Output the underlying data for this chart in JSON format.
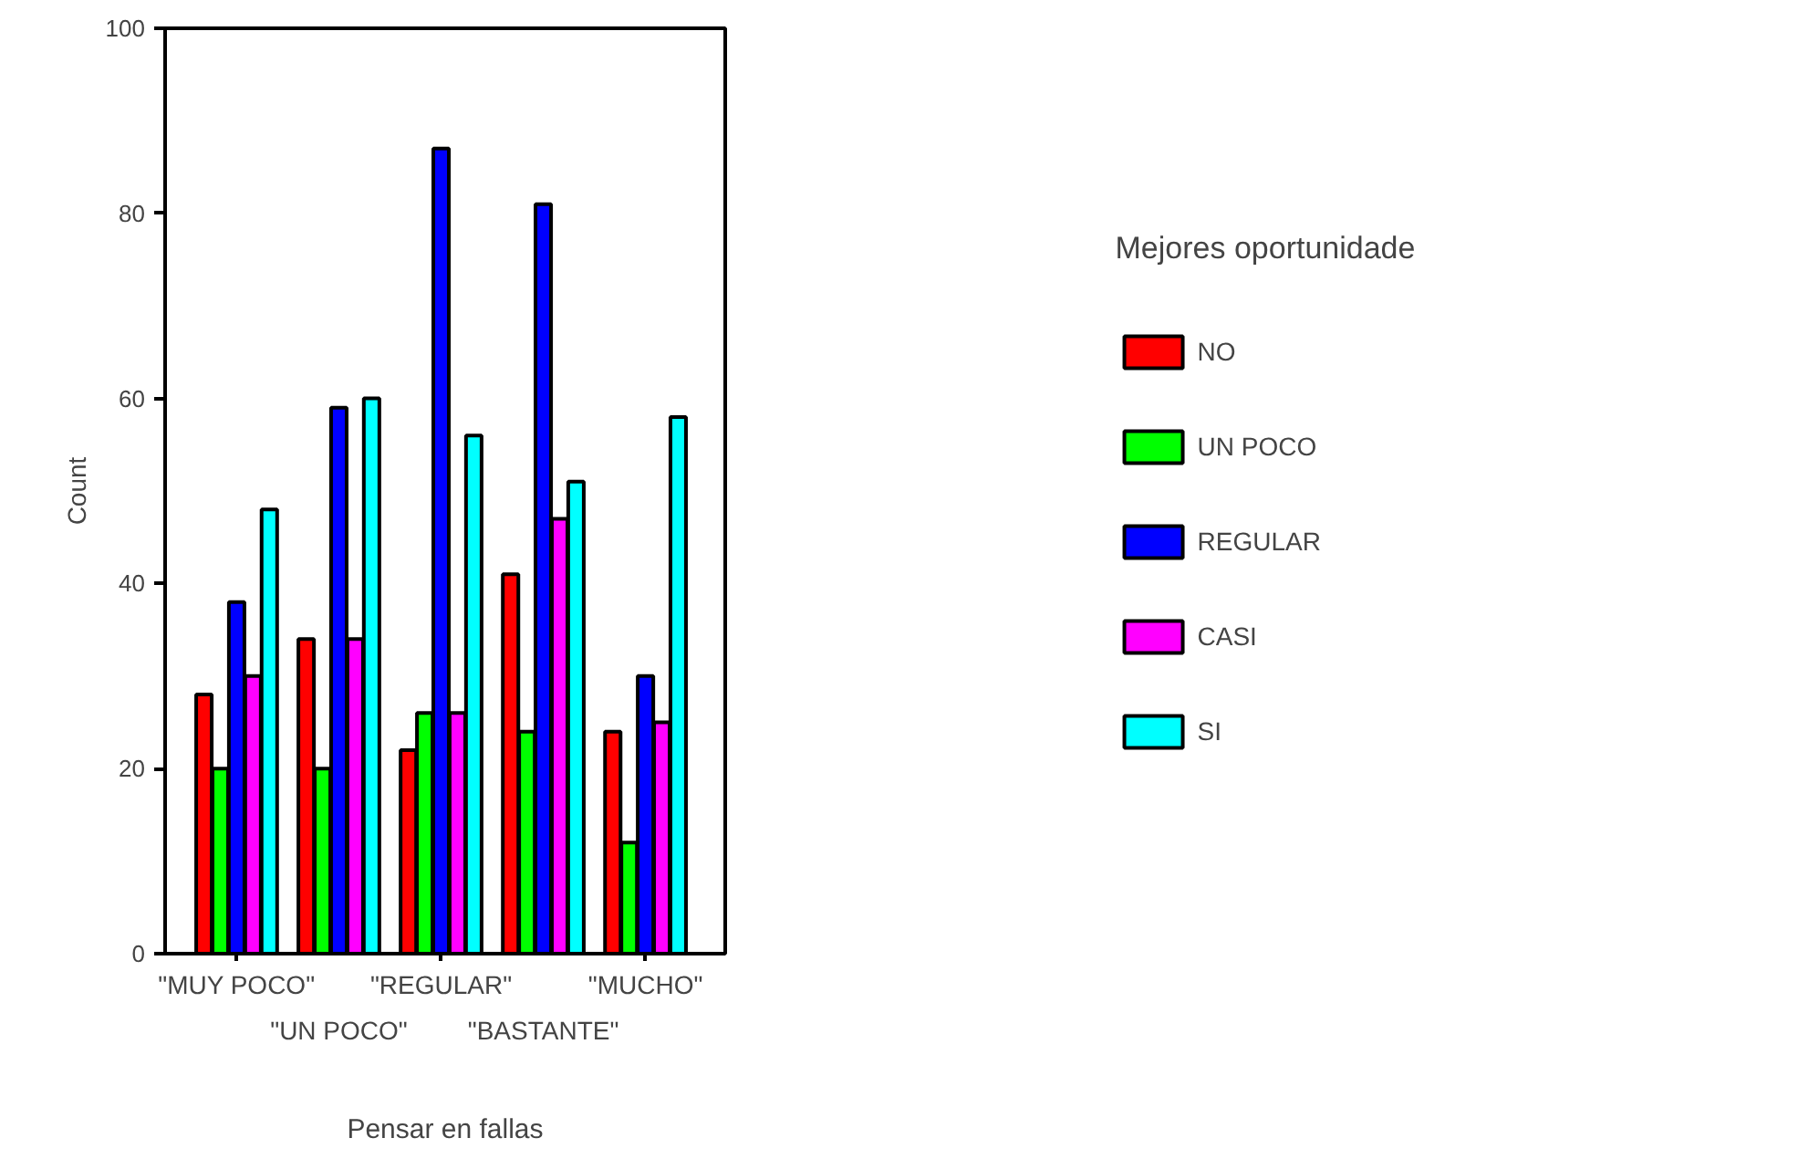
{
  "chart_data": {
    "type": "bar",
    "xlabel": "Pensar en fallas",
    "ylabel": "Count",
    "legend_title": "Mejores oportunidade",
    "categories": [
      "\"MUY POCO\"",
      "\"UN POCO\"",
      "\"REGULAR\"",
      "\"BASTANTE\"",
      "\"MUCHO\""
    ],
    "series": [
      {
        "name": "NO",
        "color": "#ff0000",
        "values": [
          28,
          34,
          22,
          41,
          24
        ]
      },
      {
        "name": "UN POCO",
        "color": "#00ff00",
        "values": [
          20,
          20,
          26,
          24,
          12
        ]
      },
      {
        "name": "REGULAR",
        "color": "#0000ff",
        "values": [
          38,
          59,
          87,
          81,
          30
        ]
      },
      {
        "name": "CASI",
        "color": "#ff00ff",
        "values": [
          30,
          34,
          26,
          47,
          25
        ]
      },
      {
        "name": "SI",
        "color": "#00ffff",
        "values": [
          48,
          60,
          56,
          51,
          58
        ]
      }
    ],
    "ylim": [
      0,
      100
    ],
    "yticks": [
      0,
      20,
      40,
      60,
      80,
      100
    ],
    "grid": false,
    "legend": "right"
  }
}
